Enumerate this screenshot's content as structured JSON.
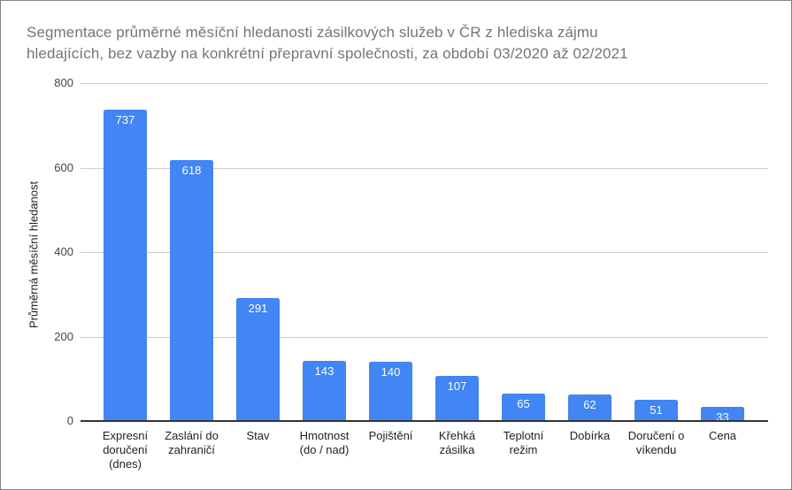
{
  "window": {
    "background": "#ffffff",
    "border_color": "#848484"
  },
  "chart": {
    "title_lines": [
      "Segmentace průměrné měsíční hledanosti zásilkových služeb v ČR z hlediska zájmu",
      "hledajících, bez vazby na konkrétní přepravní společnosti, za období 03/2020 až 02/2021"
    ],
    "title_color": "#757575"
  },
  "chart_data": {
    "type": "bar",
    "title": "Segmentace průměrné měsíční hledanosti zásilkových služeb v ČR z hlediska zájmu hledajících, bez vazby na konkrétní přepravní společnosti, za období 03/2020 až 02/2021",
    "categories": [
      "Expresní doručení (dnes)",
      "Zaslání do zahraničí",
      "Stav",
      "Hmotnost (do / nad)",
      "Pojištění",
      "Křehká zásilka",
      "Teplotní režim",
      "Dobírka",
      "Doručení o víkendu",
      "Cena"
    ],
    "category_lines": [
      [
        "Expresní",
        "doručení",
        "(dnes)"
      ],
      [
        "Zaslání do",
        "zahraničí"
      ],
      [
        "Stav"
      ],
      [
        "Hmotnost",
        "(do / nad)"
      ],
      [
        "Pojištění"
      ],
      [
        "Křehká",
        "zásilka"
      ],
      [
        "Teplotní",
        "režim"
      ],
      [
        "Dobírka"
      ],
      [
        "Doručení o",
        "víkendu"
      ],
      [
        "Cena"
      ]
    ],
    "values": [
      737,
      618,
      291,
      143,
      140,
      107,
      65,
      62,
      51,
      33
    ],
    "xlabel": "",
    "ylabel": "Průměrná měsíční hledanost",
    "ylim": [
      0,
      800
    ],
    "yticks": [
      0,
      200,
      400,
      600,
      800
    ],
    "grid": true,
    "legend": false,
    "bar_color": "#4285f4",
    "value_label_color": "#ffffff",
    "gridline_color": "#cccccc",
    "axis_line_color": "#333333",
    "tick_label_color": "#444444",
    "category_label_color": "#222222"
  }
}
